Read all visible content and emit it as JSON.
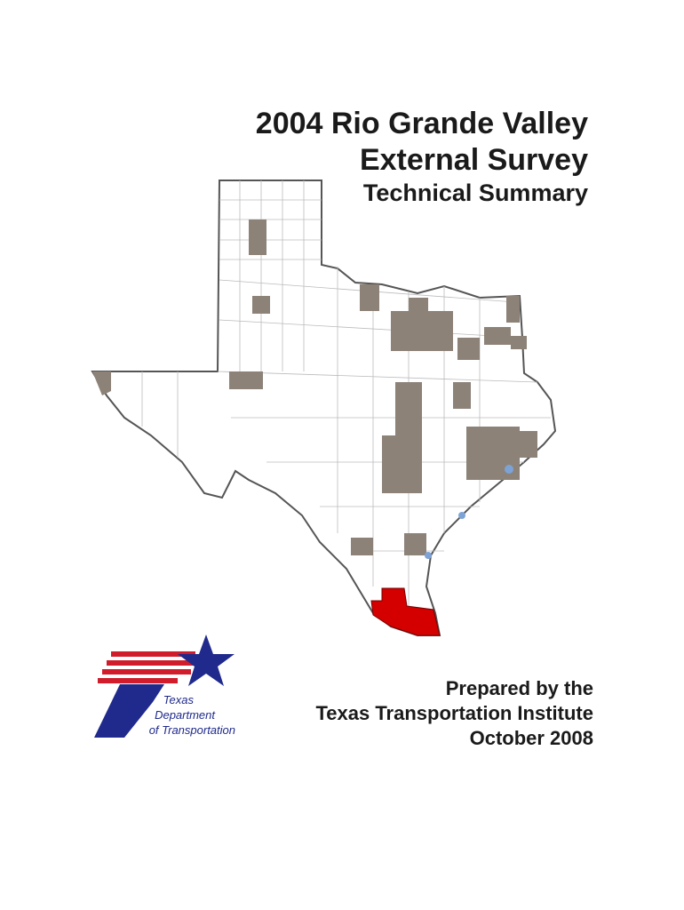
{
  "title": {
    "lines": [
      "2004 Rio Grande Valley",
      "External Survey"
    ]
  },
  "subtitle": "Technical Summary",
  "logo": {
    "lines": [
      "Texas",
      "Department",
      "of Transportation"
    ]
  },
  "prepared": {
    "lines": [
      "Prepared by the",
      "Texas Transportation Institute",
      "October 2008"
    ]
  }
}
